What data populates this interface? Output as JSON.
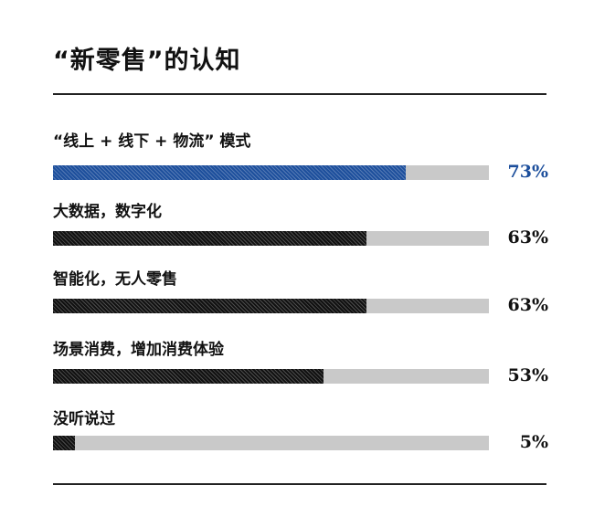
{
  "chart_data": {
    "type": "bar",
    "orientation": "horizontal",
    "title": "“新零售”的认知",
    "categories": [
      "“线上 + 线下 + 物流” 模式",
      "大数据，数字化",
      "智能化，无人零售",
      "场景消费，增加消费体验",
      "没听说过"
    ],
    "values": [
      73,
      63,
      63,
      53,
      5
    ],
    "value_labels": [
      "73%",
      "63%",
      "63%",
      "53%",
      "5%"
    ],
    "highlight_color": "#1d4f9c",
    "bar_color": "#111111",
    "track_color": "#c9c9c9",
    "highlight_index": 0
  }
}
